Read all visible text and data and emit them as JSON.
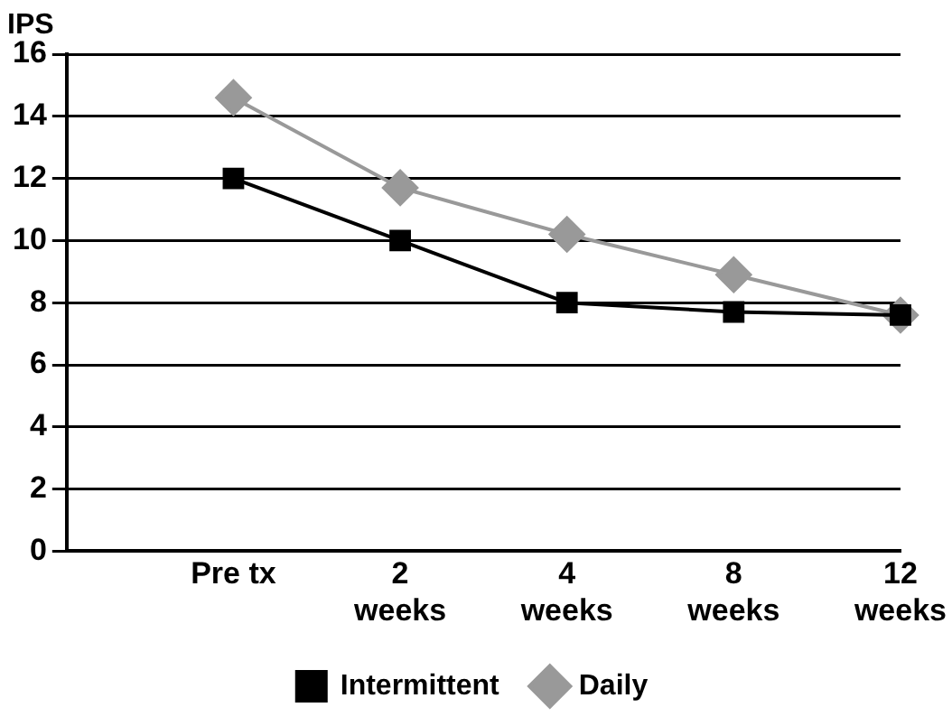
{
  "chart_data": {
    "type": "line",
    "ylabel": "IPS",
    "categories": [
      null,
      "Pre tx",
      "2 weeks",
      "4 weeks",
      "8 weeks",
      "12 weeks"
    ],
    "series": [
      {
        "name": "Daily",
        "color": "#999999",
        "marker": "diamond",
        "values": [
          null,
          14.6,
          11.7,
          10.2,
          8.9,
          7.6
        ]
      },
      {
        "name": "Intermittent",
        "color": "#000000",
        "marker": "square",
        "values": [
          null,
          12.0,
          10.0,
          8.0,
          7.7,
          7.6
        ]
      }
    ],
    "ylim": [
      0,
      16
    ],
    "yticks": [
      0,
      2,
      4,
      6,
      8,
      10,
      12,
      14,
      16
    ],
    "grid": "y",
    "legend": "bottom",
    "line_style": "solid"
  }
}
